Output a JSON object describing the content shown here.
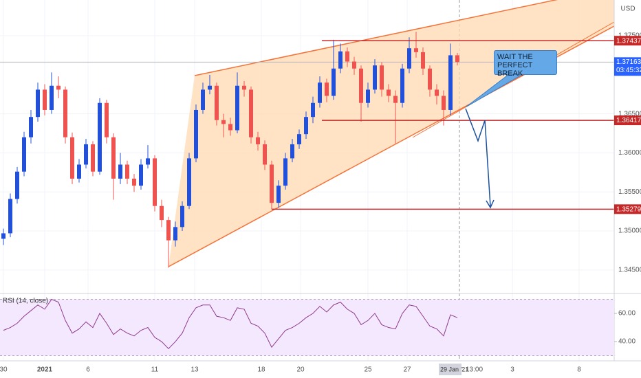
{
  "chart_data": [
    {
      "type": "candlestick",
      "currency": "USD",
      "open": [
        1.349,
        1.3497,
        1.3541,
        1.3576,
        1.362,
        1.3646,
        1.3681,
        1.3655,
        1.3686,
        1.3681,
        1.362,
        1.3567,
        1.3585,
        1.3611,
        1.3576,
        1.3664,
        1.362,
        1.3567,
        1.3585,
        1.3567,
        1.3558,
        1.3585,
        1.3593,
        1.3532,
        1.3514,
        1.3488,
        1.3505,
        1.3532,
        1.3593,
        1.3655,
        1.3681,
        1.3686,
        1.3642,
        1.3637,
        1.3629,
        1.3686,
        1.3681,
        1.362,
        1.3611,
        1.3585,
        1.3536,
        1.3558,
        1.3593,
        1.3611,
        1.3624,
        1.3646,
        1.3664,
        1.369,
        1.3673,
        1.3708,
        1.373,
        1.3717,
        1.3708,
        1.3664,
        1.3681,
        1.3712,
        1.3681,
        1.3673,
        1.3664,
        1.3708,
        1.3734,
        1.3729,
        1.3708,
        1.3681,
        1.3673,
        1.3655,
        1.3725
      ],
      "high": [
        1.3503,
        1.3548,
        1.3582,
        1.3627,
        1.3655,
        1.369,
        1.3688,
        1.3703,
        1.3698,
        1.3685,
        1.3626,
        1.3592,
        1.3618,
        1.3615,
        1.367,
        1.3668,
        1.3625,
        1.36,
        1.359,
        1.3573,
        1.3592,
        1.361,
        1.3597,
        1.354,
        1.3518,
        1.3512,
        1.3538,
        1.36,
        1.3662,
        1.369,
        1.37,
        1.369,
        1.365,
        1.3645,
        1.3703,
        1.3692,
        1.3685,
        1.3627,
        1.3616,
        1.359,
        1.3565,
        1.36,
        1.3618,
        1.363,
        1.3653,
        1.3672,
        1.3698,
        1.3695,
        1.3745,
        1.374,
        1.3735,
        1.3723,
        1.3712,
        1.369,
        1.372,
        1.3716,
        1.3688,
        1.368,
        1.3714,
        1.3748,
        1.3755,
        1.3735,
        1.3712,
        1.3688,
        1.368,
        1.374,
        1.3728
      ],
      "low": [
        1.3482,
        1.3492,
        1.3535,
        1.357,
        1.3612,
        1.364,
        1.3648,
        1.365,
        1.367,
        1.3612,
        1.356,
        1.3562,
        1.358,
        1.357,
        1.3572,
        1.3612,
        1.354,
        1.356,
        1.356,
        1.355,
        1.3553,
        1.358,
        1.3525,
        1.3505,
        1.3453,
        1.348,
        1.35,
        1.3528,
        1.3588,
        1.365,
        1.3675,
        1.3635,
        1.362,
        1.3622,
        1.3625,
        1.3672,
        1.3612,
        1.3603,
        1.3578,
        1.3528,
        1.353,
        1.3553,
        1.3588,
        1.3605,
        1.3618,
        1.3638,
        1.3658,
        1.3665,
        1.3668,
        1.3702,
        1.371,
        1.37,
        1.364,
        1.3658,
        1.3676,
        1.3672,
        1.3665,
        1.3612,
        1.3658,
        1.3702,
        1.3722,
        1.37,
        1.3672,
        1.3662,
        1.3635,
        1.3648,
        1.3712
      ],
      "close": [
        1.3497,
        1.3541,
        1.3576,
        1.362,
        1.3646,
        1.3681,
        1.3655,
        1.3686,
        1.3681,
        1.362,
        1.3567,
        1.3585,
        1.3611,
        1.3576,
        1.3664,
        1.362,
        1.3567,
        1.3585,
        1.3567,
        1.3558,
        1.3585,
        1.3593,
        1.3532,
        1.3514,
        1.3488,
        1.3505,
        1.3532,
        1.3593,
        1.3655,
        1.3681,
        1.3686,
        1.3642,
        1.3637,
        1.3629,
        1.3686,
        1.3681,
        1.362,
        1.3611,
        1.3585,
        1.3536,
        1.3558,
        1.3593,
        1.3611,
        1.3624,
        1.3646,
        1.3664,
        1.369,
        1.3673,
        1.3708,
        1.373,
        1.3717,
        1.3708,
        1.3664,
        1.3681,
        1.3712,
        1.3681,
        1.3673,
        1.3664,
        1.3708,
        1.3734,
        1.3729,
        1.3708,
        1.3681,
        1.3673,
        1.3655,
        1.3725,
        1.37163
      ],
      "up_color": "#2250d9",
      "down_color": "#ef5350",
      "xlim": [
        -0.5,
        88.8
      ],
      "xticks": [
        {
          "value": 0,
          "label": "30"
        },
        {
          "value": 6,
          "label": "2021"
        },
        {
          "value": 12.3,
          "label": "6"
        },
        {
          "value": 22,
          "label": "11"
        },
        {
          "value": 27.8,
          "label": "13"
        },
        {
          "value": 37.5,
          "label": "18"
        },
        {
          "value": 43.2,
          "label": "20"
        },
        {
          "value": 53,
          "label": "25"
        },
        {
          "value": 58.7,
          "label": "27"
        },
        {
          "value": 74,
          "label": "3"
        },
        {
          "value": 83.7,
          "label": "8"
        }
      ],
      "ylim": [
        1.34217,
        1.37958
      ],
      "yticks": [
        {
          "value": 1.375,
          "label": "1.37500"
        },
        {
          "value": 1.365,
          "label": "1.36500"
        },
        {
          "value": 1.36,
          "label": "1.36000"
        },
        {
          "value": 1.355,
          "label": "1.35500"
        },
        {
          "value": 1.35,
          "label": "1.35000"
        },
        {
          "value": 1.345,
          "label": "1.34500"
        }
      ],
      "levels": [
        1.37437,
        1.36417,
        1.35279
      ],
      "level_color": "#c62828",
      "last_price": 1.37163,
      "countdown": "03:45:32",
      "crosshair": {
        "x": 66.3,
        "date": "29 Jan '21",
        "time": "13:00"
      },
      "annotation": "WAIT THE PERFECT BREAK"
    },
    {
      "type": "line",
      "title": "RSI (14, close)",
      "color": "#8e3b8e",
      "values": [
        48,
        50,
        53,
        58,
        62,
        66,
        63,
        70,
        68,
        55,
        46,
        49,
        54,
        50,
        60,
        53,
        45,
        49,
        46,
        44,
        48,
        50,
        43,
        40,
        35,
        40,
        46,
        57,
        64,
        66,
        66,
        58,
        57,
        55,
        64,
        63,
        53,
        51,
        46,
        36,
        42,
        48,
        50,
        53,
        57,
        60,
        65,
        61,
        66,
        68,
        63,
        60,
        52,
        55,
        60,
        52,
        50,
        49,
        60,
        66,
        65,
        58,
        51,
        49,
        44,
        59,
        57
      ],
      "ylim": [
        28.8,
        72.7
      ],
      "yticks": [
        {
          "value": 60,
          "label": "60.00"
        },
        {
          "value": 40,
          "label": "40.00"
        }
      ],
      "band": [
        30,
        70
      ]
    }
  ]
}
